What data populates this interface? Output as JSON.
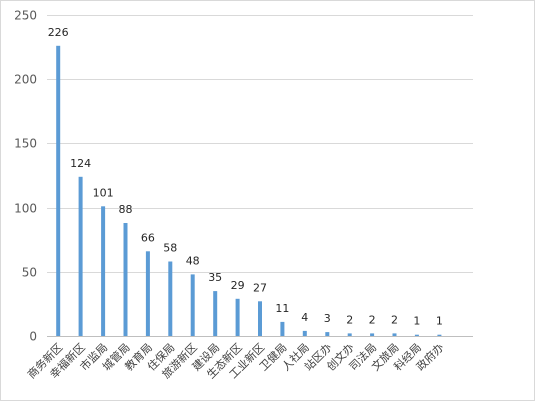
{
  "chart_data": {
    "type": "bar",
    "title": "",
    "xlabel": "",
    "ylabel": "",
    "ylim": [
      0,
      250
    ],
    "yticks": [
      0,
      50,
      100,
      150,
      200,
      250
    ],
    "grid": true,
    "legend": "none",
    "bar_color": "#5b9bd5",
    "categories": [
      "商务新区",
      "幸福新区",
      "市监局",
      "城管局",
      "教育局",
      "住保局",
      "旅游新区",
      "建设局",
      "生态新区",
      "工业新区",
      "卫健局",
      "人社局",
      "站区办",
      "创文办",
      "司法局",
      "文旅局",
      "科经局",
      "政府办"
    ],
    "values": [
      226,
      124,
      101,
      88,
      66,
      58,
      48,
      35,
      29,
      27,
      11,
      4,
      3,
      2,
      2,
      2,
      1,
      1
    ],
    "data_labels": [
      "226",
      "124",
      "101",
      "88",
      "66",
      "58",
      "48",
      "35",
      "29",
      "27",
      "11",
      "4",
      "3",
      "2",
      "2",
      "2",
      "1",
      "1"
    ]
  }
}
